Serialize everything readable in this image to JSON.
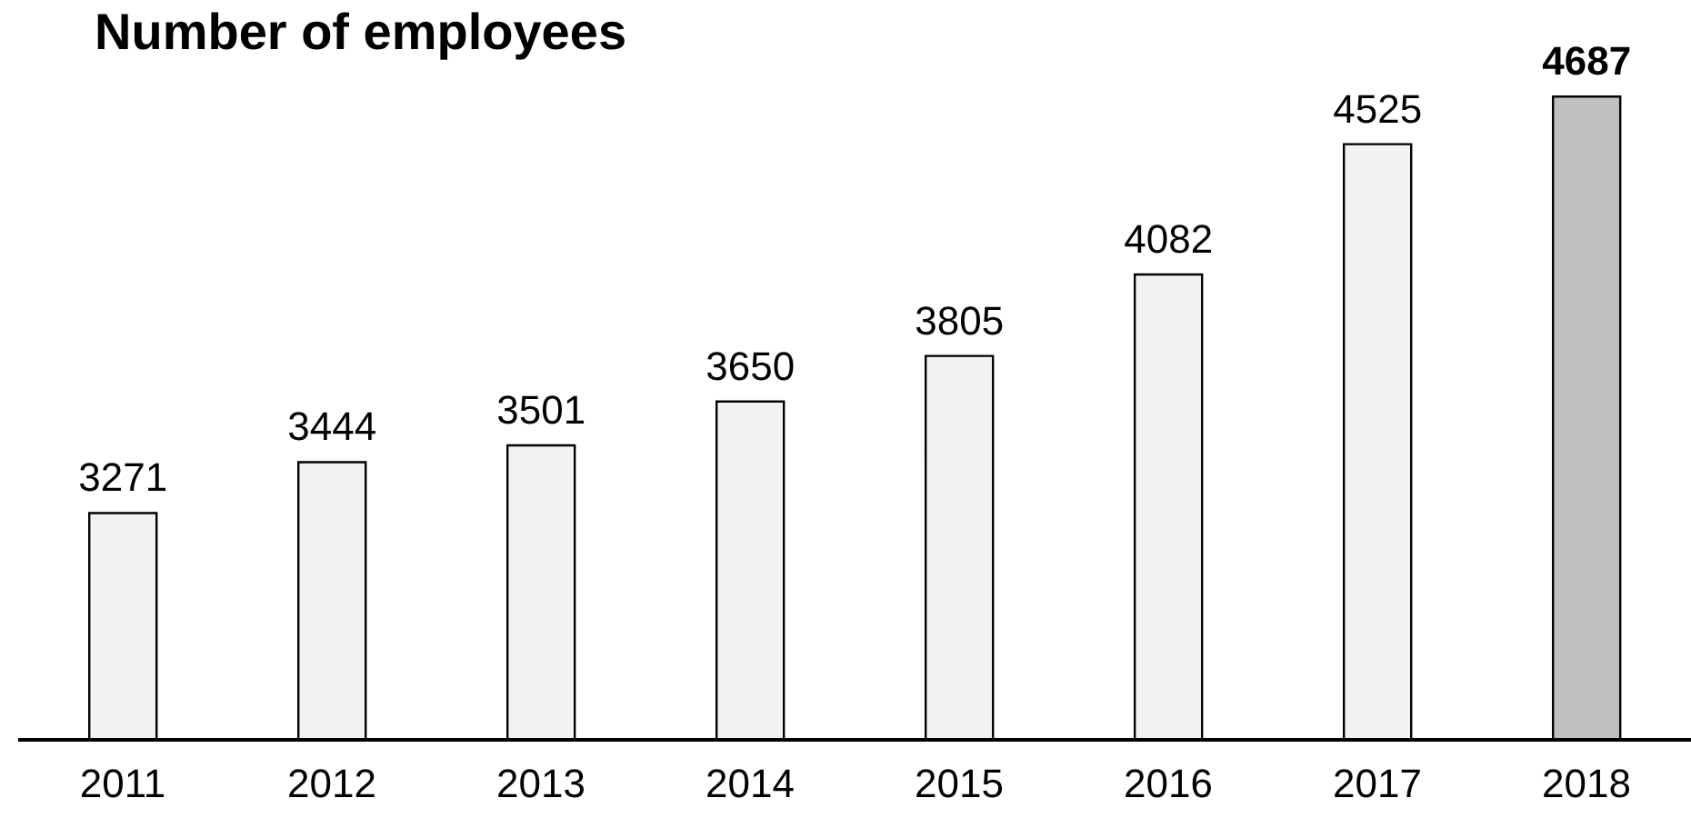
{
  "chart_data": {
    "type": "bar",
    "title": "Number of employees",
    "categories": [
      "2011",
      "2012",
      "2013",
      "2014",
      "2015",
      "2016",
      "2017",
      "2018"
    ],
    "values": [
      3271,
      3444,
      3501,
      3650,
      3805,
      4082,
      4525,
      4687
    ],
    "color": "#f2f2f2",
    "colors": [
      "#f2f2f2",
      "#f2f2f2",
      "#f2f2f2",
      "#f2f2f2",
      "#f2f2f2",
      "#f2f2f2",
      "#f2f2f2",
      "#bfbfbf"
    ],
    "ylim": [
      2500,
      4700
    ],
    "data_labels": true,
    "tick_labels": "x",
    "grid": false,
    "legend": false
  }
}
